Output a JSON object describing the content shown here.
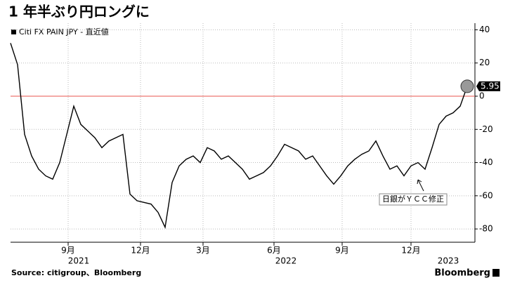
{
  "chart_data": {
    "type": "line",
    "title": "1 年半ぶり円ロングに",
    "series": [
      {
        "name": "Citi FX PAIN JPY - 直近値",
        "color": "#000000",
        "values": [
          32,
          19,
          -23,
          -36,
          -44,
          -48,
          -50,
          -40,
          -23,
          -6,
          -17,
          -21,
          -25,
          -31,
          -27,
          -25,
          -23,
          -59,
          -63,
          -64,
          -65,
          -70,
          -79,
          -52,
          -42,
          -38,
          -36,
          -40,
          -31,
          -33,
          -38,
          -36,
          -40,
          -44,
          -50,
          -48,
          -46,
          -42,
          -36,
          -29,
          -31,
          -33,
          -38,
          -36,
          -42,
          -48,
          -53,
          -48,
          -42,
          -38,
          -35,
          -33,
          -27,
          -36,
          -44,
          -42,
          -48,
          -42,
          -40,
          -44,
          -31,
          -17,
          -12,
          -10,
          -6,
          5.95
        ]
      }
    ],
    "xlim": [
      0,
      65
    ],
    "xticks": [
      {
        "value": 8.2,
        "label": "9月"
      },
      {
        "value": 18.5,
        "label": "12月"
      },
      {
        "value": 27.4,
        "label": "3月"
      },
      {
        "value": 37.5,
        "label": "6月"
      },
      {
        "value": 47.2,
        "label": "9月"
      },
      {
        "value": 57,
        "label": "12月"
      }
    ],
    "year_labels": [
      {
        "value": 9.7,
        "label": "2021"
      },
      {
        "value": 39.2,
        "label": "2022"
      },
      {
        "value": 62.3,
        "label": "2023"
      }
    ],
    "ylim": [
      -88,
      44
    ],
    "yticks": [
      40,
      20,
      0,
      -20,
      -40,
      -60,
      -80
    ],
    "reference_line": 0,
    "reference_color": "#e8554e",
    "annotation": "日銀がＹＣＣ修正",
    "source": "Source: citigroup、Bloomberg",
    "brand": "Bloomberg",
    "grid": true
  }
}
